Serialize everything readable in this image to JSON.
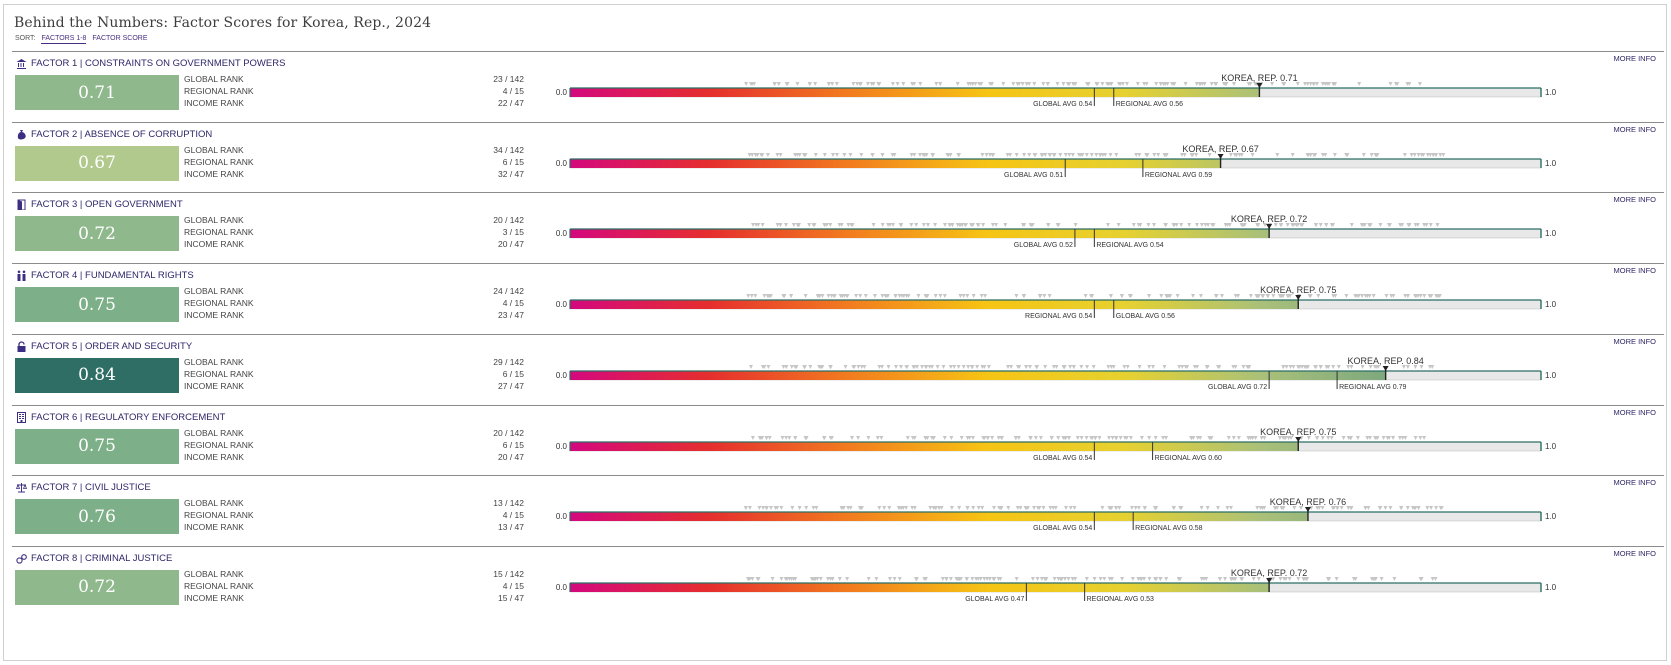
{
  "page": {
    "title": "Behind the Numbers: Factor Scores for Korea, Rep., 2024",
    "sort": {
      "label": "SORT:",
      "options": [
        "FACTORS 1-8",
        "FACTOR SCORE"
      ],
      "active": 0
    }
  },
  "scale": {
    "min_label": "0.0",
    "max_label": "1.0"
  },
  "colors": {
    "gradient": [
      "#d4087e",
      "#e52e2e",
      "#f27b1f",
      "#f6c414",
      "#e6d130",
      "#a9c07a",
      "#78a57f",
      "#2c6e64"
    ],
    "bar_remainder": "#e8e8e8",
    "marker": "#222222",
    "dot": "#c6c6c6"
  },
  "factors": [
    {
      "id": 1,
      "icon": "government-building-icon",
      "title": "FACTOR 1 | CONSTRAINTS ON GOVERNMENT POWERS",
      "more_info": "MORE INFO",
      "score": 0.71,
      "score_label": "0.71",
      "box_color": "#8fb98d",
      "ranks": [
        {
          "label": "GLOBAL RANK",
          "value": "23 / 142"
        },
        {
          "label": "REGIONAL RANK",
          "value": "4 / 15"
        },
        {
          "label": "INCOME RANK",
          "value": "22 / 47"
        }
      ],
      "country_label": "KOREA, REP. 0.71",
      "averages": [
        {
          "label": "GLOBAL AVG 0.54",
          "value": 0.54
        },
        {
          "label": "REGIONAL AVG 0.56",
          "value": 0.56
        }
      ]
    },
    {
      "id": 2,
      "icon": "money-bag-icon",
      "title": "FACTOR 2 | ABSENCE OF CORRUPTION",
      "more_info": "MORE INFO",
      "score": 0.67,
      "score_label": "0.67",
      "box_color": "#b1c98c",
      "ranks": [
        {
          "label": "GLOBAL RANK",
          "value": "34 / 142"
        },
        {
          "label": "REGIONAL RANK",
          "value": "6 / 15"
        },
        {
          "label": "INCOME RANK",
          "value": "32 / 47"
        }
      ],
      "country_label": "KOREA, REP. 0.67",
      "averages": [
        {
          "label": "GLOBAL AVG 0.51",
          "value": 0.51
        },
        {
          "label": "REGIONAL AVG 0.59",
          "value": 0.59
        }
      ]
    },
    {
      "id": 3,
      "icon": "open-door-icon",
      "title": "FACTOR 3 | OPEN GOVERNMENT",
      "more_info": "MORE INFO",
      "score": 0.72,
      "score_label": "0.72",
      "box_color": "#8fb98d",
      "ranks": [
        {
          "label": "GLOBAL RANK",
          "value": "20 / 142"
        },
        {
          "label": "REGIONAL RANK",
          "value": "3 / 15"
        },
        {
          "label": "INCOME RANK",
          "value": "20 / 47"
        }
      ],
      "country_label": "KOREA, REP. 0.72",
      "averages": [
        {
          "label": "GLOBAL AVG 0.52",
          "value": 0.52
        },
        {
          "label": "REGIONAL AVG 0.54",
          "value": 0.54
        }
      ]
    },
    {
      "id": 4,
      "icon": "people-icon",
      "title": "FACTOR 4 | FUNDAMENTAL RIGHTS",
      "more_info": "MORE INFO",
      "score": 0.75,
      "score_label": "0.75",
      "box_color": "#7daf88",
      "ranks": [
        {
          "label": "GLOBAL RANK",
          "value": "24 / 142"
        },
        {
          "label": "REGIONAL RANK",
          "value": "4 / 15"
        },
        {
          "label": "INCOME RANK",
          "value": "23 / 47"
        }
      ],
      "country_label": "KOREA, REP. 0.75",
      "averages": [
        {
          "label": "REGIONAL AVG 0.54",
          "value": 0.54
        },
        {
          "label": "GLOBAL AVG 0.56",
          "value": 0.56
        }
      ]
    },
    {
      "id": 5,
      "icon": "padlock-icon",
      "title": "FACTOR 5 | ORDER AND SECURITY",
      "more_info": "MORE INFO",
      "score": 0.84,
      "score_label": "0.84",
      "box_color": "#2e6e64",
      "ranks": [
        {
          "label": "GLOBAL RANK",
          "value": "29 / 142"
        },
        {
          "label": "REGIONAL RANK",
          "value": "6 / 15"
        },
        {
          "label": "INCOME RANK",
          "value": "27 / 47"
        }
      ],
      "country_label": "KOREA, REP. 0.84",
      "averages": [
        {
          "label": "GLOBAL AVG 0.72",
          "value": 0.72
        },
        {
          "label": "REGIONAL AVG 0.79",
          "value": 0.79
        }
      ]
    },
    {
      "id": 6,
      "icon": "building-icon",
      "title": "FACTOR 6 | REGULATORY ENFORCEMENT",
      "more_info": "MORE INFO",
      "score": 0.75,
      "score_label": "0.75",
      "box_color": "#7daf88",
      "ranks": [
        {
          "label": "GLOBAL RANK",
          "value": "20 / 142"
        },
        {
          "label": "REGIONAL RANK",
          "value": "6 / 15"
        },
        {
          "label": "INCOME RANK",
          "value": "20 / 47"
        }
      ],
      "country_label": "KOREA, REP. 0.75",
      "averages": [
        {
          "label": "GLOBAL AVG 0.54",
          "value": 0.54
        },
        {
          "label": "REGIONAL AVG 0.60",
          "value": 0.6
        }
      ]
    },
    {
      "id": 7,
      "icon": "scales-icon",
      "title": "FACTOR 7 | CIVIL JUSTICE",
      "more_info": "MORE INFO",
      "score": 0.76,
      "score_label": "0.76",
      "box_color": "#7daf88",
      "ranks": [
        {
          "label": "GLOBAL RANK",
          "value": "13 / 142"
        },
        {
          "label": "REGIONAL RANK",
          "value": "4 / 15"
        },
        {
          "label": "INCOME RANK",
          "value": "13 / 47"
        }
      ],
      "country_label": "KOREA, REP. 0.76",
      "averages": [
        {
          "label": "GLOBAL AVG 0.54",
          "value": 0.54
        },
        {
          "label": "REGIONAL AVG 0.58",
          "value": 0.58
        }
      ]
    },
    {
      "id": 8,
      "icon": "handcuffs-icon",
      "title": "FACTOR 8 | CRIMINAL JUSTICE",
      "more_info": "MORE INFO",
      "score": 0.72,
      "score_label": "0.72",
      "box_color": "#8fb98d",
      "ranks": [
        {
          "label": "GLOBAL RANK",
          "value": "15 / 142"
        },
        {
          "label": "REGIONAL RANK",
          "value": "4 / 15"
        },
        {
          "label": "INCOME RANK",
          "value": "15 / 47"
        }
      ],
      "country_label": "KOREA, REP. 0.72",
      "averages": [
        {
          "label": "GLOBAL AVG 0.47",
          "value": 0.47
        },
        {
          "label": "REGIONAL AVG 0.53",
          "value": 0.53
        }
      ]
    }
  ]
}
